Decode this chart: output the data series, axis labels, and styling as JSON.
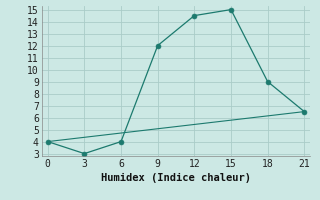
{
  "xlabel": "Humidex (Indice chaleur)",
  "line1_x": [
    0,
    3,
    6,
    9,
    12,
    15,
    18,
    21
  ],
  "line1_y": [
    4,
    3,
    4,
    12,
    14.5,
    15,
    9,
    6.5
  ],
  "line2_x": [
    0,
    21
  ],
  "line2_y": [
    4,
    6.5
  ],
  "line_color": "#1c7a6e",
  "bg_color": "#cce8e4",
  "grid_color": "#aaccc8",
  "xlim": [
    -0.5,
    21.5
  ],
  "ylim": [
    2.8,
    15.3
  ],
  "xticks": [
    0,
    3,
    6,
    9,
    12,
    15,
    18,
    21
  ],
  "yticks": [
    3,
    4,
    5,
    6,
    7,
    8,
    9,
    10,
    11,
    12,
    13,
    14,
    15
  ],
  "marker_size": 3.5,
  "font_size": 7.5
}
